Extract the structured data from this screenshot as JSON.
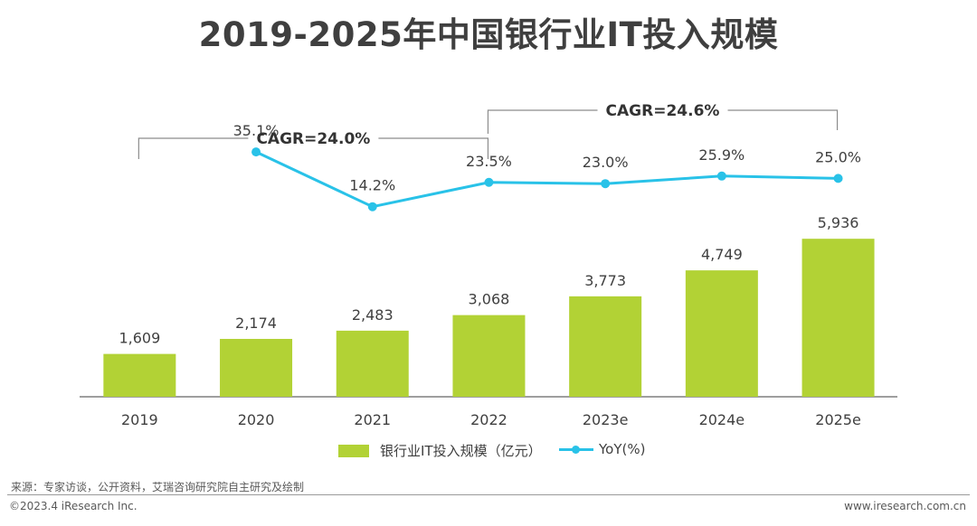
{
  "title": "2019-2025年中国银行业IT投入规模",
  "colors": {
    "bar": "#b2d235",
    "line": "#29c2e8",
    "axis": "#7f7f7f",
    "bracket": "#8c8c8c"
  },
  "chart_data": {
    "type": "bar",
    "categories": [
      "2019",
      "2020",
      "2021",
      "2022",
      "2023e",
      "2024e",
      "2025e"
    ],
    "series": [
      {
        "name": "银行业IT投入规模（亿元）",
        "type": "bar",
        "values": [
          1609,
          2174,
          2483,
          3068,
          3773,
          4749,
          5936
        ],
        "labels": [
          "1,609",
          "2,174",
          "2,483",
          "3,068",
          "3,773",
          "4,749",
          "5,936"
        ]
      },
      {
        "name": "YoY(%)",
        "type": "line",
        "values": [
          null,
          35.1,
          14.2,
          23.5,
          23.0,
          25.9,
          25.0
        ],
        "labels": [
          "",
          "35.1%",
          "14.2%",
          "23.5%",
          "23.0%",
          "25.9%",
          "25.0%"
        ]
      }
    ],
    "annotations": [
      {
        "text": "CAGR=24.0%",
        "from": "2019",
        "to": "2022"
      },
      {
        "text": "CAGR=24.6%",
        "from": "2022",
        "to": "2025e"
      }
    ],
    "grid": false,
    "legend_position": "bottom"
  },
  "source": "来源：专家访谈，公开资料，艾瑞咨询研究院自主研究及绘制",
  "copyright": "©2023.4 iResearch Inc.",
  "website": "www.iresearch.com.cn"
}
